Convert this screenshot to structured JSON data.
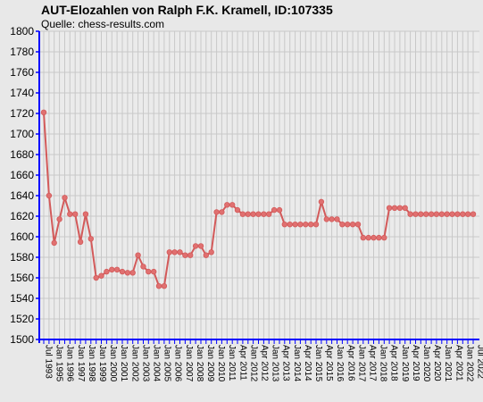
{
  "chart_data": {
    "type": "line",
    "title": "AUT-Elozahlen von Ralph F.K. Kramell, ID:107335",
    "subtitle": "Quelle: chess-results.com",
    "xlabel": "",
    "ylabel": "",
    "ylim": [
      1500,
      1800
    ],
    "y_ticks": [
      1500,
      1520,
      1540,
      1560,
      1580,
      1600,
      1620,
      1640,
      1660,
      1680,
      1700,
      1720,
      1740,
      1760,
      1780,
      1800
    ],
    "grid": true,
    "legend": "none",
    "colors": {
      "line": "#d35a5a",
      "marker": "#e07070",
      "plot_bg": "#ebebeb",
      "grid": "#c8c8c8",
      "axis": "#0000ff",
      "page_bg": "#e8e8e8"
    },
    "x_labels": [
      "Jul 1993",
      "Jan 1995",
      "Jan 1996",
      "Jan 1997",
      "Jan 1998",
      "Jan 1999",
      "Jan 2000",
      "Jan 2001",
      "Jan 2002",
      "Jan 2003",
      "Jan 2004",
      "Jan 2005",
      "Jan 2006",
      "Jan 2007",
      "Jan 2008",
      "Jan 2009",
      "Jan 2010",
      "Jan 2011",
      "Apr 2011",
      "Jan 2012",
      "Apr 2012",
      "Jan 2013",
      "Apr 2013",
      "Jan 2014",
      "Apr 2014",
      "Jan 2015",
      "Apr 2015",
      "Jan 2016",
      "Apr 2016",
      "Jan 2017",
      "Apr 2017",
      "Jan 2018",
      "Apr 2018",
      "Jan 2019",
      "Apr 2019",
      "Jan 2020",
      "Apr 2020",
      "Jan 2021",
      "Apr 2021",
      "Jan 2022",
      "Jul 2022"
    ],
    "series": [
      {
        "values": [
          1721,
          1640,
          1594,
          1617,
          1638,
          1622,
          1622,
          1595,
          1622,
          1598,
          1560,
          1562,
          1566,
          1568,
          1568,
          1566,
          1565,
          1565,
          1582,
          1571,
          1566,
          1566,
          1552,
          1552,
          1585,
          1585,
          1585,
          1582,
          1582,
          1591,
          1591,
          1582,
          1585,
          1624,
          1624,
          1631,
          1631,
          1626,
          1622,
          1622,
          1622,
          1622,
          1622,
          1622,
          1626,
          1626,
          1612,
          1612,
          1612,
          1612,
          1612,
          1612,
          1612,
          1634,
          1617,
          1617,
          1617,
          1612,
          1612,
          1612,
          1612,
          1599,
          1599,
          1599,
          1599,
          1599,
          1628,
          1628,
          1628,
          1628,
          1622,
          1622,
          1622,
          1622,
          1622,
          1622,
          1622,
          1622,
          1622,
          1622,
          1622,
          1622,
          1622
        ]
      }
    ]
  }
}
